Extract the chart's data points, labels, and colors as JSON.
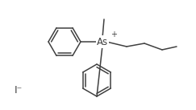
{
  "bg_color": "#ffffff",
  "line_color": "#404040",
  "text_color": "#404040",
  "line_width": 1.1,
  "fig_width": 2.43,
  "fig_height": 1.37,
  "dpi": 100,
  "as_label": "As",
  "as_charge": "+",
  "iodide_label": "I⁻"
}
